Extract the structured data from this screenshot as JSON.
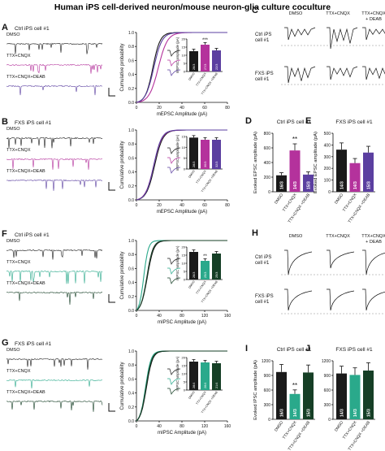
{
  "title": "Human iPS cell-derived neuron/mouse neuron-glia culture coculture",
  "colors": {
    "black": "#1a1a1a",
    "magenta": "#b4329c",
    "purple": "#5b3fa0",
    "teal": "#2aa98b",
    "darkgreen": "#163f26",
    "gray": "#8a8a8a"
  },
  "panels": {
    "A": {
      "letter": "A",
      "header": "Ctrl iPS cell #1",
      "traces": [
        "DMSO",
        "TTX+CNQX",
        "TTX+CNQX+DEAB"
      ],
      "cdf_xlabel": "mEPSC Amplitude (pA)",
      "cdf_ylabel": "Cumulative probability",
      "cdf_xticks": [
        "0",
        "20",
        "40",
        "60",
        "80"
      ],
      "cdf_yticks": [
        "0.0",
        "0.2",
        "0.4",
        "0.6",
        "0.8",
        "1.0"
      ],
      "inset_ylabel": "mEPSC amplitude (pA)",
      "inset_yticks": [
        "0",
        "5",
        "10",
        "15",
        "20"
      ],
      "bars": [
        {
          "name": "DMSO",
          "n": "26/3",
          "value": 12.5
        },
        {
          "name": "TTX+CNQX",
          "n": "27/3",
          "value": 16.5
        },
        {
          "name": "TTX+CNQX +DEAB",
          "n": "22/3",
          "value": 13
        }
      ],
      "sig": "***"
    },
    "B": {
      "letter": "B",
      "header": "FXS iPS cell #1",
      "traces": [
        "DMSO",
        "TTX+CNQX",
        "TTX+CNQX+DEAB"
      ],
      "cdf_xlabel": "mEPSC Amplitude (pA)",
      "cdf_ylabel": "Cumulative probability",
      "cdf_xticks": [
        "0",
        "20",
        "40",
        "60",
        "80"
      ],
      "cdf_yticks": [
        "0.0",
        "0.2",
        "0.4",
        "0.6",
        "0.8",
        "1.0"
      ],
      "inset_ylabel": "mEPSC amplitude (pA)",
      "inset_yticks": [
        "0",
        "5",
        "10",
        "15"
      ],
      "bars": [
        {
          "name": "DMSO",
          "n": "28/3",
          "value": 14.5
        },
        {
          "name": "TTX+CNQX",
          "n": "30/3",
          "value": 13.5
        },
        {
          "name": "TTX+CNQX +DEAB",
          "n": "32/3",
          "value": 13.5
        }
      ]
    },
    "C": {
      "letter": "C",
      "columns": [
        "DMSO",
        "TTX+CNQX",
        "TTX+CNQX + DEAB"
      ],
      "row1": "Ctrl iPS cell #1",
      "row2": "FXS iPS cell #1"
    },
    "D": {
      "letter": "D",
      "header": "Ctrl iPS cell #1",
      "ylabel": "Evoked EPSC amplitude (pA)",
      "yticks": [
        "0",
        "200",
        "400",
        "600",
        "800"
      ],
      "bars": [
        {
          "name": "DMSO",
          "n": "16/3",
          "value": 225
        },
        {
          "name": "TTX+CNQX",
          "n": "14/3",
          "value": 565
        },
        {
          "name": "TTX+CNQX +DEAB",
          "n": "15/3",
          "value": 235
        }
      ],
      "sig": "**"
    },
    "E": {
      "letter": "E",
      "header": "FXS iPS cell #1",
      "ylabel": "Evoked EPSC amplitude (pA)",
      "yticks": [
        "0",
        "100",
        "200",
        "300",
        "400",
        "500"
      ],
      "bars": [
        {
          "name": "DMSO",
          "n": "14/3",
          "value": 360
        },
        {
          "name": "TTX+CNQX",
          "n": "14/3",
          "value": 245
        },
        {
          "name": "TTX+CNQX +DEAB",
          "n": "15/3",
          "value": 335
        }
      ]
    },
    "F": {
      "letter": "F",
      "header": "Ctrl iPS cell #1",
      "traces": [
        "DMSO",
        "TTX+CNQX",
        "TTX+CNQX+DEAB"
      ],
      "cdf_xlabel": "mIPSC Amplitude (pA)",
      "cdf_ylabel": "Cumulative probability",
      "cdf_xticks": [
        "0",
        "40",
        "80",
        "120",
        "160"
      ],
      "cdf_yticks": [
        "0.0",
        "0.2",
        "0.4",
        "0.6",
        "0.8",
        "1.0"
      ],
      "inset_ylabel": "mIPSC amplitude (pA)",
      "inset_yticks": [
        "0",
        "5",
        "10",
        "15",
        "20"
      ],
      "bars": [
        {
          "name": "DMSO",
          "n": "26/3",
          "value": 17
        },
        {
          "name": "TTX+CNQX",
          "n": "25/3",
          "value": 11.5
        },
        {
          "name": "TTX+CNQX +DEAB",
          "n": "25/3",
          "value": 16
        }
      ],
      "sig": "**"
    },
    "G": {
      "letter": "G",
      "header": "FXS iPS cell #1",
      "traces": [
        "DMSO",
        "TTX+CNQX",
        "TTX+CNQX+DEAB"
      ],
      "cdf_xlabel": "mIPSC Amplitude (pA)",
      "cdf_ylabel": "Cumulative probability",
      "cdf_xticks": [
        "0",
        "40",
        "80",
        "120",
        "160"
      ],
      "cdf_yticks": [
        "0.0",
        "0.2",
        "0.4",
        "0.6",
        "0.8",
        "1.0"
      ],
      "inset_ylabel": "mIPSC amplitude (pA)",
      "inset_yticks": [
        "0",
        "5",
        "10",
        "15",
        "20"
      ],
      "bars": [
        {
          "name": "DMSO",
          "n": "28/4",
          "value": 17.5
        },
        {
          "name": "TTX+CNQX",
          "n": "26/4",
          "value": 17
        },
        {
          "name": "TTX+CNQX +DEAB",
          "n": "21/4",
          "value": 16.5
        }
      ]
    },
    "H": {
      "letter": "H",
      "columns": [
        "DMSO",
        "TTX+CNQX",
        "TTX+CNQX + DEAB"
      ],
      "row1": "Ctrl iPS cell #1",
      "row2": "FXS iPS cell #1"
    },
    "I": {
      "letter": "I",
      "header": "Ctrl iPS cell #1",
      "ylabel": "Evoked IPSC amplitude (pA)",
      "yticks": [
        "0",
        "300",
        "600",
        "900",
        "1200"
      ],
      "bars": [
        {
          "name": "DMSO",
          "n": "16/3",
          "value": 970
        },
        {
          "name": "TTX+CNQX",
          "n": "14/3",
          "value": 520
        },
        {
          "name": "TTX+CNQX +DEAB",
          "n": "15/3",
          "value": 960
        }
      ],
      "sig": "**"
    },
    "J": {
      "letter": "J",
      "header": "FXS iPS cell #1",
      "yticks": [
        "0",
        "300",
        "600",
        "900",
        "1200"
      ],
      "bars": [
        {
          "name": "DMSO",
          "n": "14/3",
          "value": 940
        },
        {
          "name": "TTX+CNQX",
          "n": "14/3",
          "value": 910
        },
        {
          "name": "TTX+CNQX +DEAB",
          "n": "15/3",
          "value": 1000
        }
      ]
    }
  },
  "chart_data": [
    {
      "type": "bar",
      "panel": "A",
      "categories": [
        "DMSO",
        "TTX+CNQX",
        "TTX+CNQX +DEAB"
      ],
      "values": [
        12.5,
        16.5,
        13
      ],
      "ylabel": "mEPSC amplitude (pA)",
      "ylim": [
        0,
        20
      ]
    },
    {
      "type": "bar",
      "panel": "B",
      "categories": [
        "DMSO",
        "TTX+CNQX",
        "TTX+CNQX +DEAB"
      ],
      "values": [
        14.5,
        13.5,
        13.5
      ],
      "ylabel": "mEPSC amplitude (pA)",
      "ylim": [
        0,
        17
      ]
    },
    {
      "type": "bar",
      "panel": "D",
      "categories": [
        "DMSO",
        "TTX+CNQX",
        "TTX+CNQX +DEAB"
      ],
      "values": [
        225,
        565,
        235
      ],
      "ylabel": "Evoked EPSC amplitude (pA)",
      "ylim": [
        0,
        800
      ]
    },
    {
      "type": "bar",
      "panel": "E",
      "categories": [
        "DMSO",
        "TTX+CNQX",
        "TTX+CNQX +DEAB"
      ],
      "values": [
        360,
        245,
        335
      ],
      "ylabel": "Evoked EPSC amplitude (pA)",
      "ylim": [
        0,
        500
      ]
    },
    {
      "type": "bar",
      "panel": "F",
      "categories": [
        "DMSO",
        "TTX+CNQX",
        "TTX+CNQX +DEAB"
      ],
      "values": [
        17,
        11.5,
        16
      ],
      "ylabel": "mIPSC amplitude (pA)",
      "ylim": [
        0,
        20
      ]
    },
    {
      "type": "bar",
      "panel": "G",
      "categories": [
        "DMSO",
        "TTX+CNQX",
        "TTX+CNQX +DEAB"
      ],
      "values": [
        17.5,
        17,
        16.5
      ],
      "ylabel": "mIPSC amplitude (pA)",
      "ylim": [
        0,
        20
      ]
    },
    {
      "type": "bar",
      "panel": "I",
      "categories": [
        "DMSO",
        "TTX+CNQX",
        "TTX+CNQX +DEAB"
      ],
      "values": [
        970,
        520,
        960
      ],
      "ylabel": "Evoked IPSC amplitude (pA)",
      "ylim": [
        0,
        1200
      ]
    },
    {
      "type": "bar",
      "panel": "J",
      "categories": [
        "DMSO",
        "TTX+CNQX",
        "TTX+CNQX +DEAB"
      ],
      "values": [
        940,
        910,
        1000
      ],
      "ylim": [
        0,
        1200
      ]
    }
  ]
}
